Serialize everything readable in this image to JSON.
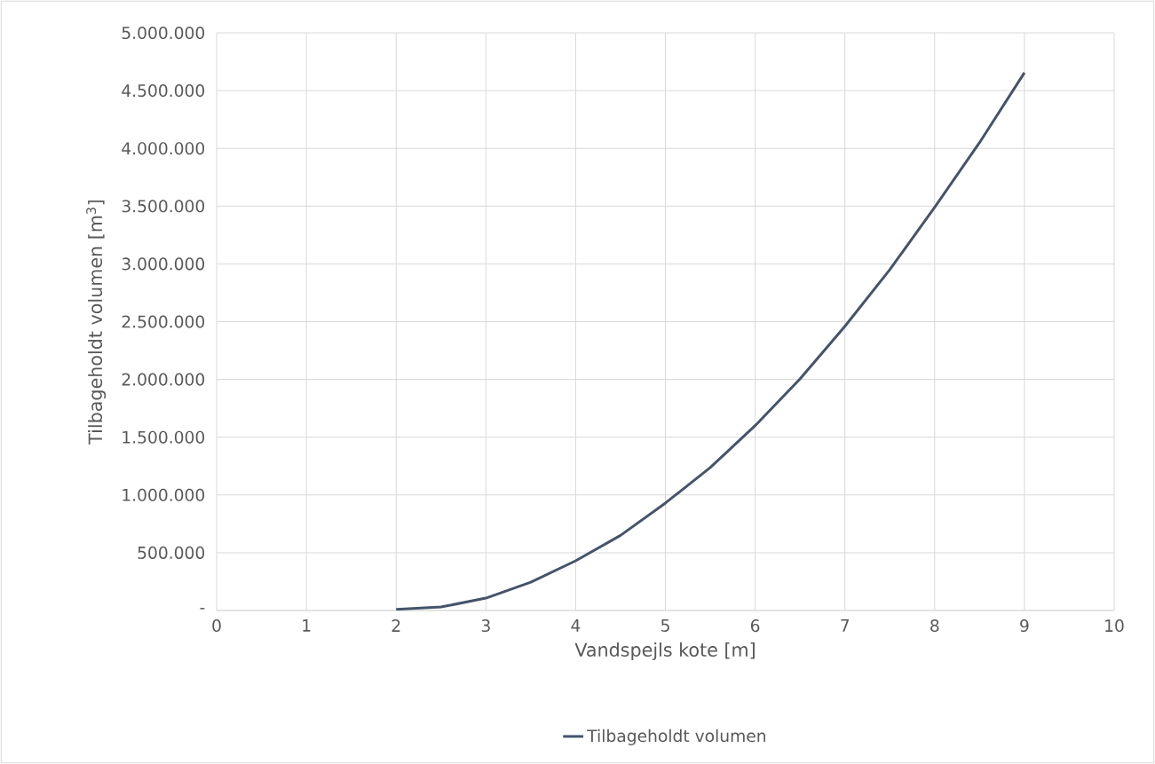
{
  "chart_data": {
    "type": "line",
    "xlabel": "Vandspejls kote [m]",
    "ylabel": "Tilbageholdt volumen [m$^{3}$]",
    "x": [
      2,
      2.5,
      3,
      3.5,
      4,
      4.5,
      5,
      5.5,
      6,
      6.5,
      7,
      7.5,
      8,
      8.5,
      9
    ],
    "series": [
      {
        "name": "Tilbageholdt volumen",
        "color": "#44546a",
        "values": [
          10000,
          30000,
          107000,
          245000,
          430000,
          650000,
          930000,
          1237000,
          1600000,
          2005000,
          2460000,
          2950000,
          3490000,
          4050000,
          4655000
        ]
      }
    ],
    "xlim": [
      0,
      10
    ],
    "xticks": [
      0,
      1,
      2,
      3,
      4,
      5,
      6,
      7,
      8,
      9,
      10
    ],
    "ylim": [
      0,
      5000000
    ],
    "yticks": [
      {
        "value": 0,
        "label": "-"
      },
      {
        "value": 500000,
        "label": "500.000"
      },
      {
        "value": 1000000,
        "label": "1.000.000"
      },
      {
        "value": 1500000,
        "label": "1.500.000"
      },
      {
        "value": 2000000,
        "label": "2.000.000"
      },
      {
        "value": 2500000,
        "label": "2.500.000"
      },
      {
        "value": 3000000,
        "label": "3.000.000"
      },
      {
        "value": 3500000,
        "label": "3.500.000"
      },
      {
        "value": 4000000,
        "label": "4.000.000"
      },
      {
        "value": 4500000,
        "label": "4.500.000"
      },
      {
        "value": 5000000,
        "label": "5.000.000"
      }
    ],
    "grid": true,
    "legend": "bottom",
    "marker": "none",
    "line_style": "solid"
  }
}
